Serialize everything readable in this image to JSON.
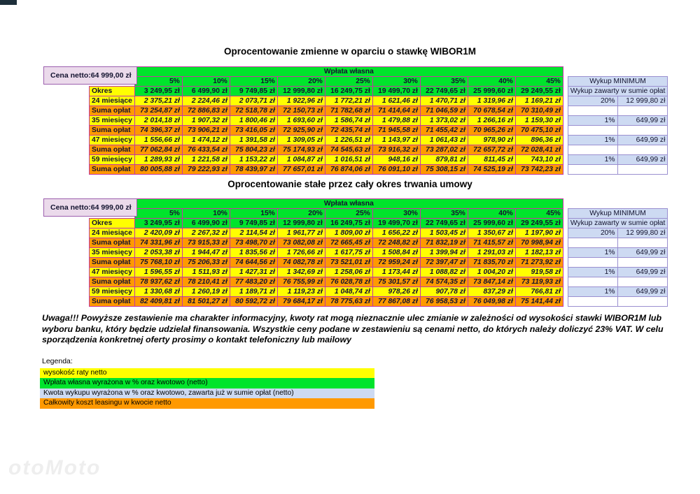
{
  "colors": {
    "yellow": "#FFFF00",
    "green": "#00E42C",
    "orange": "#FF9900",
    "light_blue": "#CDDAF2",
    "pink": "#EBDAEB",
    "pink_border": "#9C5FAE",
    "grid_line": "#C437A4",
    "wykup_line": "#9A8FD0"
  },
  "tables": [
    {
      "title": "Oprocentowanie zmienne w oparciu o stawkę WIBOR1M",
      "cena_netto_label": "Cena netto:",
      "cena_netto_value": "64 999,00 zł",
      "wplata_header": "Wpłata własna",
      "percents": [
        "5%",
        "10%",
        "15%",
        "20%",
        "25%",
        "30%",
        "35%",
        "40%",
        "45%"
      ],
      "wykup_header": "Wykup MINIMUM",
      "okres_label": "Okres",
      "okres_values": [
        "3 249,95 zł",
        "6 499,90 zł",
        "9 749,85 zł",
        "12 999,80 zł",
        "16 249,75 zł",
        "19 499,70 zł",
        "22 749,65 zł",
        "25 999,60 zł",
        "29 249,55 zł"
      ],
      "wykup_okres_note": "Wykup zawarty w sumie opłat",
      "rows": [
        {
          "type": "rata",
          "label": "24 miesiące",
          "values": [
            "2 375,21 zł",
            "2 224,46 zł",
            "2 073,71 zł",
            "1 922,96 zł",
            "1 772,21 zł",
            "1 621,46 zł",
            "1 470,71 zł",
            "1 319,96 zł",
            "1 169,21 zł"
          ],
          "wykup_pct": "20%",
          "wykup_amount": "12 999,80 zł"
        },
        {
          "type": "suma",
          "label": "Suma opłat",
          "values": [
            "73 254,87 zł",
            "72 886,83 zł",
            "72 518,78 zł",
            "72 150,73 zł",
            "71 782,68 zł",
            "71 414,64 zł",
            "71 046,59 zł",
            "70 678,54 zł",
            "70 310,49 zł"
          ]
        },
        {
          "type": "rata",
          "label": "35 miesięcy",
          "values": [
            "2 014,18 zł",
            "1 907,32 zł",
            "1 800,46 zł",
            "1 693,60 zł",
            "1 586,74 zł",
            "1 479,88 zł",
            "1 373,02 zł",
            "1 266,16 zł",
            "1 159,30 zł"
          ],
          "wykup_pct": "1%",
          "wykup_amount": "649,99 zł"
        },
        {
          "type": "suma",
          "label": "Suma opłat",
          "values": [
            "74 396,37 zł",
            "73 906,21 zł",
            "73 416,05 zł",
            "72 925,90 zł",
            "72 435,74 zł",
            "71 945,58 zł",
            "71 455,42 zł",
            "70 965,26 zł",
            "70 475,10 zł"
          ]
        },
        {
          "type": "rata",
          "label": "47 miesięcy",
          "values": [
            "1 556,66 zł",
            "1 474,12 zł",
            "1 391,58 zł",
            "1 309,05 zł",
            "1 226,51 zł",
            "1 143,97 zł",
            "1 061,43 zł",
            "978,90 zł",
            "896,36 zł"
          ],
          "wykup_pct": "1%",
          "wykup_amount": "649,99 zł"
        },
        {
          "type": "suma",
          "label": "Suma opłat",
          "values": [
            "77 062,84 zł",
            "76 433,54 zł",
            "75 804,23 zł",
            "75 174,93 zł",
            "74 545,63 zł",
            "73 916,32 zł",
            "73 287,02 zł",
            "72 657,72 zł",
            "72 028,41 zł"
          ]
        },
        {
          "type": "rata",
          "label": "59 miesięcy",
          "values": [
            "1 289,93 zł",
            "1 221,58 zł",
            "1 153,22 zł",
            "1 084,87 zł",
            "1 016,51 zł",
            "948,16 zł",
            "879,81 zł",
            "811,45 zł",
            "743,10 zł"
          ],
          "wykup_pct": "1%",
          "wykup_amount": "649,99 zł"
        },
        {
          "type": "suma",
          "label": "Suma opłat",
          "values": [
            "80 005,88 zł",
            "79 222,93 zł",
            "78 439,97 zł",
            "77 657,01 zł",
            "76 874,06 zł",
            "76 091,10 zł",
            "75 308,15 zł",
            "74 525,19 zł",
            "73 742,23 zł"
          ]
        }
      ]
    },
    {
      "title": "Oprocentowanie stałe przez cały okres trwania umowy",
      "cena_netto_label": "Cena netto:",
      "cena_netto_value": "64 999,00 zł",
      "wplata_header": "Wpłata własna",
      "percents": [
        "5%",
        "10%",
        "15%",
        "20%",
        "25%",
        "30%",
        "35%",
        "40%",
        "45%"
      ],
      "wykup_header": "Wykup MINIMUM",
      "okres_label": "Okres",
      "okres_values": [
        "3 249,95 zł",
        "6 499,90 zł",
        "9 749,85 zł",
        "12 999,80 zł",
        "16 249,75 zł",
        "19 499,70 zł",
        "22 749,65 zł",
        "25 999,60 zł",
        "29 249,55 zł"
      ],
      "wykup_okres_note": "Wykup zawarty w sumie opłat",
      "rows": [
        {
          "type": "rata",
          "label": "24 miesiące",
          "values": [
            "2 420,09 zł",
            "2 267,32 zł",
            "2 114,54 zł",
            "1 961,77 zł",
            "1 809,00 zł",
            "1 656,22 zł",
            "1 503,45 zł",
            "1 350,67 zł",
            "1 197,90 zł"
          ],
          "wykup_pct": "20%",
          "wykup_amount": "12 999,80 zł"
        },
        {
          "type": "suma",
          "label": "Suma opłat",
          "values": [
            "74 331,96 zł",
            "73 915,33 zł",
            "73 498,70 zł",
            "73 082,08 zł",
            "72 665,45 zł",
            "72 248,82 zł",
            "71 832,19 zł",
            "71 415,57 zł",
            "70 998,94 zł"
          ]
        },
        {
          "type": "rata",
          "label": "35 miesięcy",
          "values": [
            "2 053,38 zł",
            "1 944,47 zł",
            "1 835,56 zł",
            "1 726,66 zł",
            "1 617,75 zł",
            "1 508,84 zł",
            "1 399,94 zł",
            "1 291,03 zł",
            "1 182,13 zł"
          ],
          "wykup_pct": "1%",
          "wykup_amount": "649,99 zł"
        },
        {
          "type": "suma",
          "label": "Suma opłat",
          "values": [
            "75 768,10 zł",
            "75 206,33 zł",
            "74 644,56 zł",
            "74 082,78 zł",
            "73 521,01 zł",
            "72 959,24 zł",
            "72 397,47 zł",
            "71 835,70 zł",
            "71 273,92 zł"
          ]
        },
        {
          "type": "rata",
          "label": "47 miesięcy",
          "values": [
            "1 596,55 zł",
            "1 511,93 zł",
            "1 427,31 zł",
            "1 342,69 zł",
            "1 258,06 zł",
            "1 173,44 zł",
            "1 088,82 zł",
            "1 004,20 zł",
            "919,58 zł"
          ],
          "wykup_pct": "1%",
          "wykup_amount": "649,99 zł"
        },
        {
          "type": "suma",
          "label": "Suma opłat",
          "values": [
            "78 937,62 zł",
            "78 210,41 zł",
            "77 483,20 zł",
            "76 755,99 zł",
            "76 028,78 zł",
            "75 301,57 zł",
            "74 574,35 zł",
            "73 847,14 zł",
            "73 119,93 zł"
          ]
        },
        {
          "type": "rata",
          "label": "59 miesięcy",
          "values": [
            "1 330,68 zł",
            "1 260,19 zł",
            "1 189,71 zł",
            "1 119,23 zł",
            "1 048,74 zł",
            "978,26 zł",
            "907,78 zł",
            "837,29 zł",
            "766,81 zł"
          ],
          "wykup_pct": "1%",
          "wykup_amount": "649,99 zł"
        },
        {
          "type": "suma",
          "label": "Suma opłat",
          "values": [
            "82 409,81 zł",
            "81 501,27 zł",
            "80 592,72 zł",
            "79 684,17 zł",
            "78 775,63 zł",
            "77 867,08 zł",
            "76 958,53 zł",
            "76 049,98 zł",
            "75 141,44 zł"
          ]
        }
      ]
    }
  ],
  "note": "Uwaga!!! Powyższe zestawienie ma charakter informacyjny, kwoty rat mogą nieznacznie ulec zmianie w zależności od wysokości stawki WIBOR1M lub wyboru banku, który będzie udzielał finansowania. Wszystkie ceny podane w zestawieniu są cenami netto, do których należy doliczyć 23% VAT. W celu sporządzenia konkretnej oferty prosimy o kontakt telefoniczny lub mailowy",
  "legend": {
    "label": "Legenda:",
    "items": [
      {
        "text": "wysokość raty netto",
        "color": "#FFFF00"
      },
      {
        "text": "Wpłata własna wyrażona w % oraz kwotowo (netto)",
        "color": "#00E42C"
      },
      {
        "text": "Kwota wykupu wyrażona w % oraz kwotowo, zawarta już w sumie opłat (netto)",
        "color": "#CDDAF2"
      },
      {
        "text": "Całkowity koszt leasingu w kwocie netto",
        "color": "#FF9900"
      }
    ]
  },
  "watermark": "otoMoto"
}
